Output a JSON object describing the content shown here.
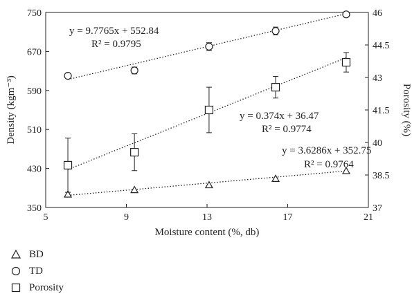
{
  "chart_data": {
    "type": "scatter",
    "xlabel": "Moisture content (%, db)",
    "ylabel_left": "Density (kgm⁻³)",
    "ylabel_right": "Porosity (%)",
    "xlim": [
      5,
      21
    ],
    "ylim_left": [
      350,
      750
    ],
    "ylim_right": [
      37,
      46
    ],
    "x_ticks": [
      5,
      9,
      13,
      17,
      21
    ],
    "y_ticks_left": [
      350,
      430,
      510,
      590,
      670,
      750
    ],
    "y_ticks_right": [
      37,
      38.5,
      40,
      41.5,
      43,
      44.5,
      46
    ],
    "series": [
      {
        "name": "BD",
        "axis": "left",
        "marker": "triangle",
        "x": [
          6.1,
          9.4,
          13.1,
          16.4,
          19.9
        ],
        "y": [
          377,
          386,
          396,
          409,
          425
        ],
        "trend": {
          "slope": 3.6286,
          "intercept": 352.75
        },
        "equation": "y = 3.6286x + 352.75",
        "r2": "R² = 0.9764"
      },
      {
        "name": "TD",
        "axis": "left",
        "marker": "circle",
        "x": [
          6.1,
          9.4,
          13.1,
          16.4,
          19.9
        ],
        "y": [
          620,
          631,
          680,
          712,
          746
        ],
        "yerr": [
          0,
          7,
          8,
          8,
          5
        ],
        "trend": {
          "slope": 9.7765,
          "intercept": 552.84
        },
        "equation": "y = 9.7765x + 552.84",
        "r2": "R² = 0.9795"
      },
      {
        "name": "Porosity",
        "axis": "right",
        "marker": "square",
        "x": [
          6.1,
          9.4,
          13.1,
          16.4,
          19.9
        ],
        "y": [
          38.95,
          39.55,
          41.5,
          42.55,
          43.7
        ],
        "yerr": [
          1.25,
          0.85,
          1.05,
          0.5,
          0.45
        ],
        "trend": {
          "slope": 0.374,
          "intercept": 36.47
        },
        "equation": "y = 0.374x + 36.47",
        "r2": "R² = 0.9774"
      }
    ],
    "legend_position": "bottom-left",
    "grid": false
  }
}
